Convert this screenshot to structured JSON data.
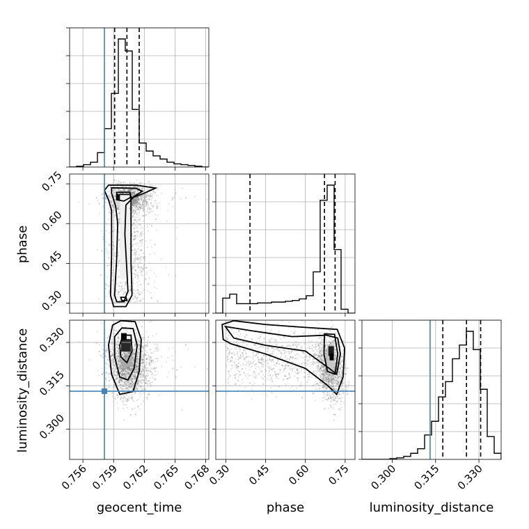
{
  "chart_data": {
    "type": "corner",
    "parameters": [
      "geocent_time",
      "phase",
      "luminosity_distance"
    ],
    "truths": {
      "geocent_time": 0.7581,
      "phase": null,
      "luminosity_distance": 0.3131
    },
    "axes": {
      "geocent_time": {
        "label": "geocent_time",
        "range": [
          0.7547,
          0.7683
        ],
        "ticks": [
          0.756,
          0.759,
          0.762,
          0.765,
          0.768
        ],
        "tick_labels": [
          "0.756",
          "0.759",
          "0.762",
          "0.765",
          "0.768"
        ]
      },
      "phase": {
        "label": "phase",
        "range": [
          0.262,
          0.787
        ],
        "ticks": [
          0.3,
          0.45,
          0.6,
          0.75
        ],
        "tick_labels": [
          "0.30",
          "0.45",
          "0.60",
          "0.75"
        ]
      },
      "luminosity_distance": {
        "label": "luminosity_distance",
        "range": [
          0.2895,
          0.3377
        ],
        "ticks": [
          0.3,
          0.315,
          0.33
        ],
        "tick_labels": [
          "0.300",
          "0.315",
          "0.330"
        ]
      }
    },
    "histograms": {
      "geocent_time": {
        "bin_edges": [
          0.7547,
          0.75538,
          0.75606,
          0.75674,
          0.75742,
          0.7581,
          0.75878,
          0.75946,
          0.76014,
          0.76082,
          0.7615,
          0.76218,
          0.76286,
          0.76354,
          0.76422,
          0.7649,
          0.76558,
          0.76626,
          0.76694,
          0.76762,
          0.7683
        ],
        "counts": [
          0,
          1,
          3,
          6,
          18,
          48,
          92,
          160,
          145,
          72,
          30,
          20,
          14,
          10,
          6,
          4,
          3,
          2,
          1,
          0
        ],
        "quantiles": [
          0.7591,
          0.7603,
          0.7615
        ]
      },
      "phase": {
        "bin_edges": [
          0.262,
          0.28825,
          0.3145,
          0.34075,
          0.367,
          0.39325,
          0.4195,
          0.44575,
          0.472,
          0.49825,
          0.5245,
          0.55075,
          0.577,
          0.60325,
          0.6295,
          0.65575,
          0.682,
          0.70825,
          0.7345,
          0.76075,
          0.787
        ],
        "counts": [
          0,
          19,
          24,
          12,
          12,
          12,
          13,
          13,
          14,
          14,
          15,
          16,
          18,
          22,
          52,
          142,
          161,
          80,
          5,
          0
        ],
        "quantiles": [
          0.391,
          0.672,
          0.712
        ]
      },
      "luminosity_distance": {
        "bin_edges": [
          0.2895,
          0.29191,
          0.29432,
          0.29673,
          0.29914,
          0.30155,
          0.30396,
          0.30637,
          0.30878,
          0.31119,
          0.3136,
          0.31601,
          0.31842,
          0.32083,
          0.32324,
          0.32565,
          0.32806,
          0.33047,
          0.33288,
          0.33529,
          0.3377
        ],
        "counts": [
          0,
          0,
          0,
          0,
          1,
          2,
          4,
          8,
          14,
          32,
          50,
          82,
          102,
          132,
          150,
          168,
          144,
          92,
          30,
          8
        ],
        "quantiles": [
          0.3175,
          0.3257,
          0.3306
        ]
      }
    },
    "contour_levels": [
      "39.3%",
      "86.5%",
      "98.9%"
    ],
    "grid": true
  }
}
